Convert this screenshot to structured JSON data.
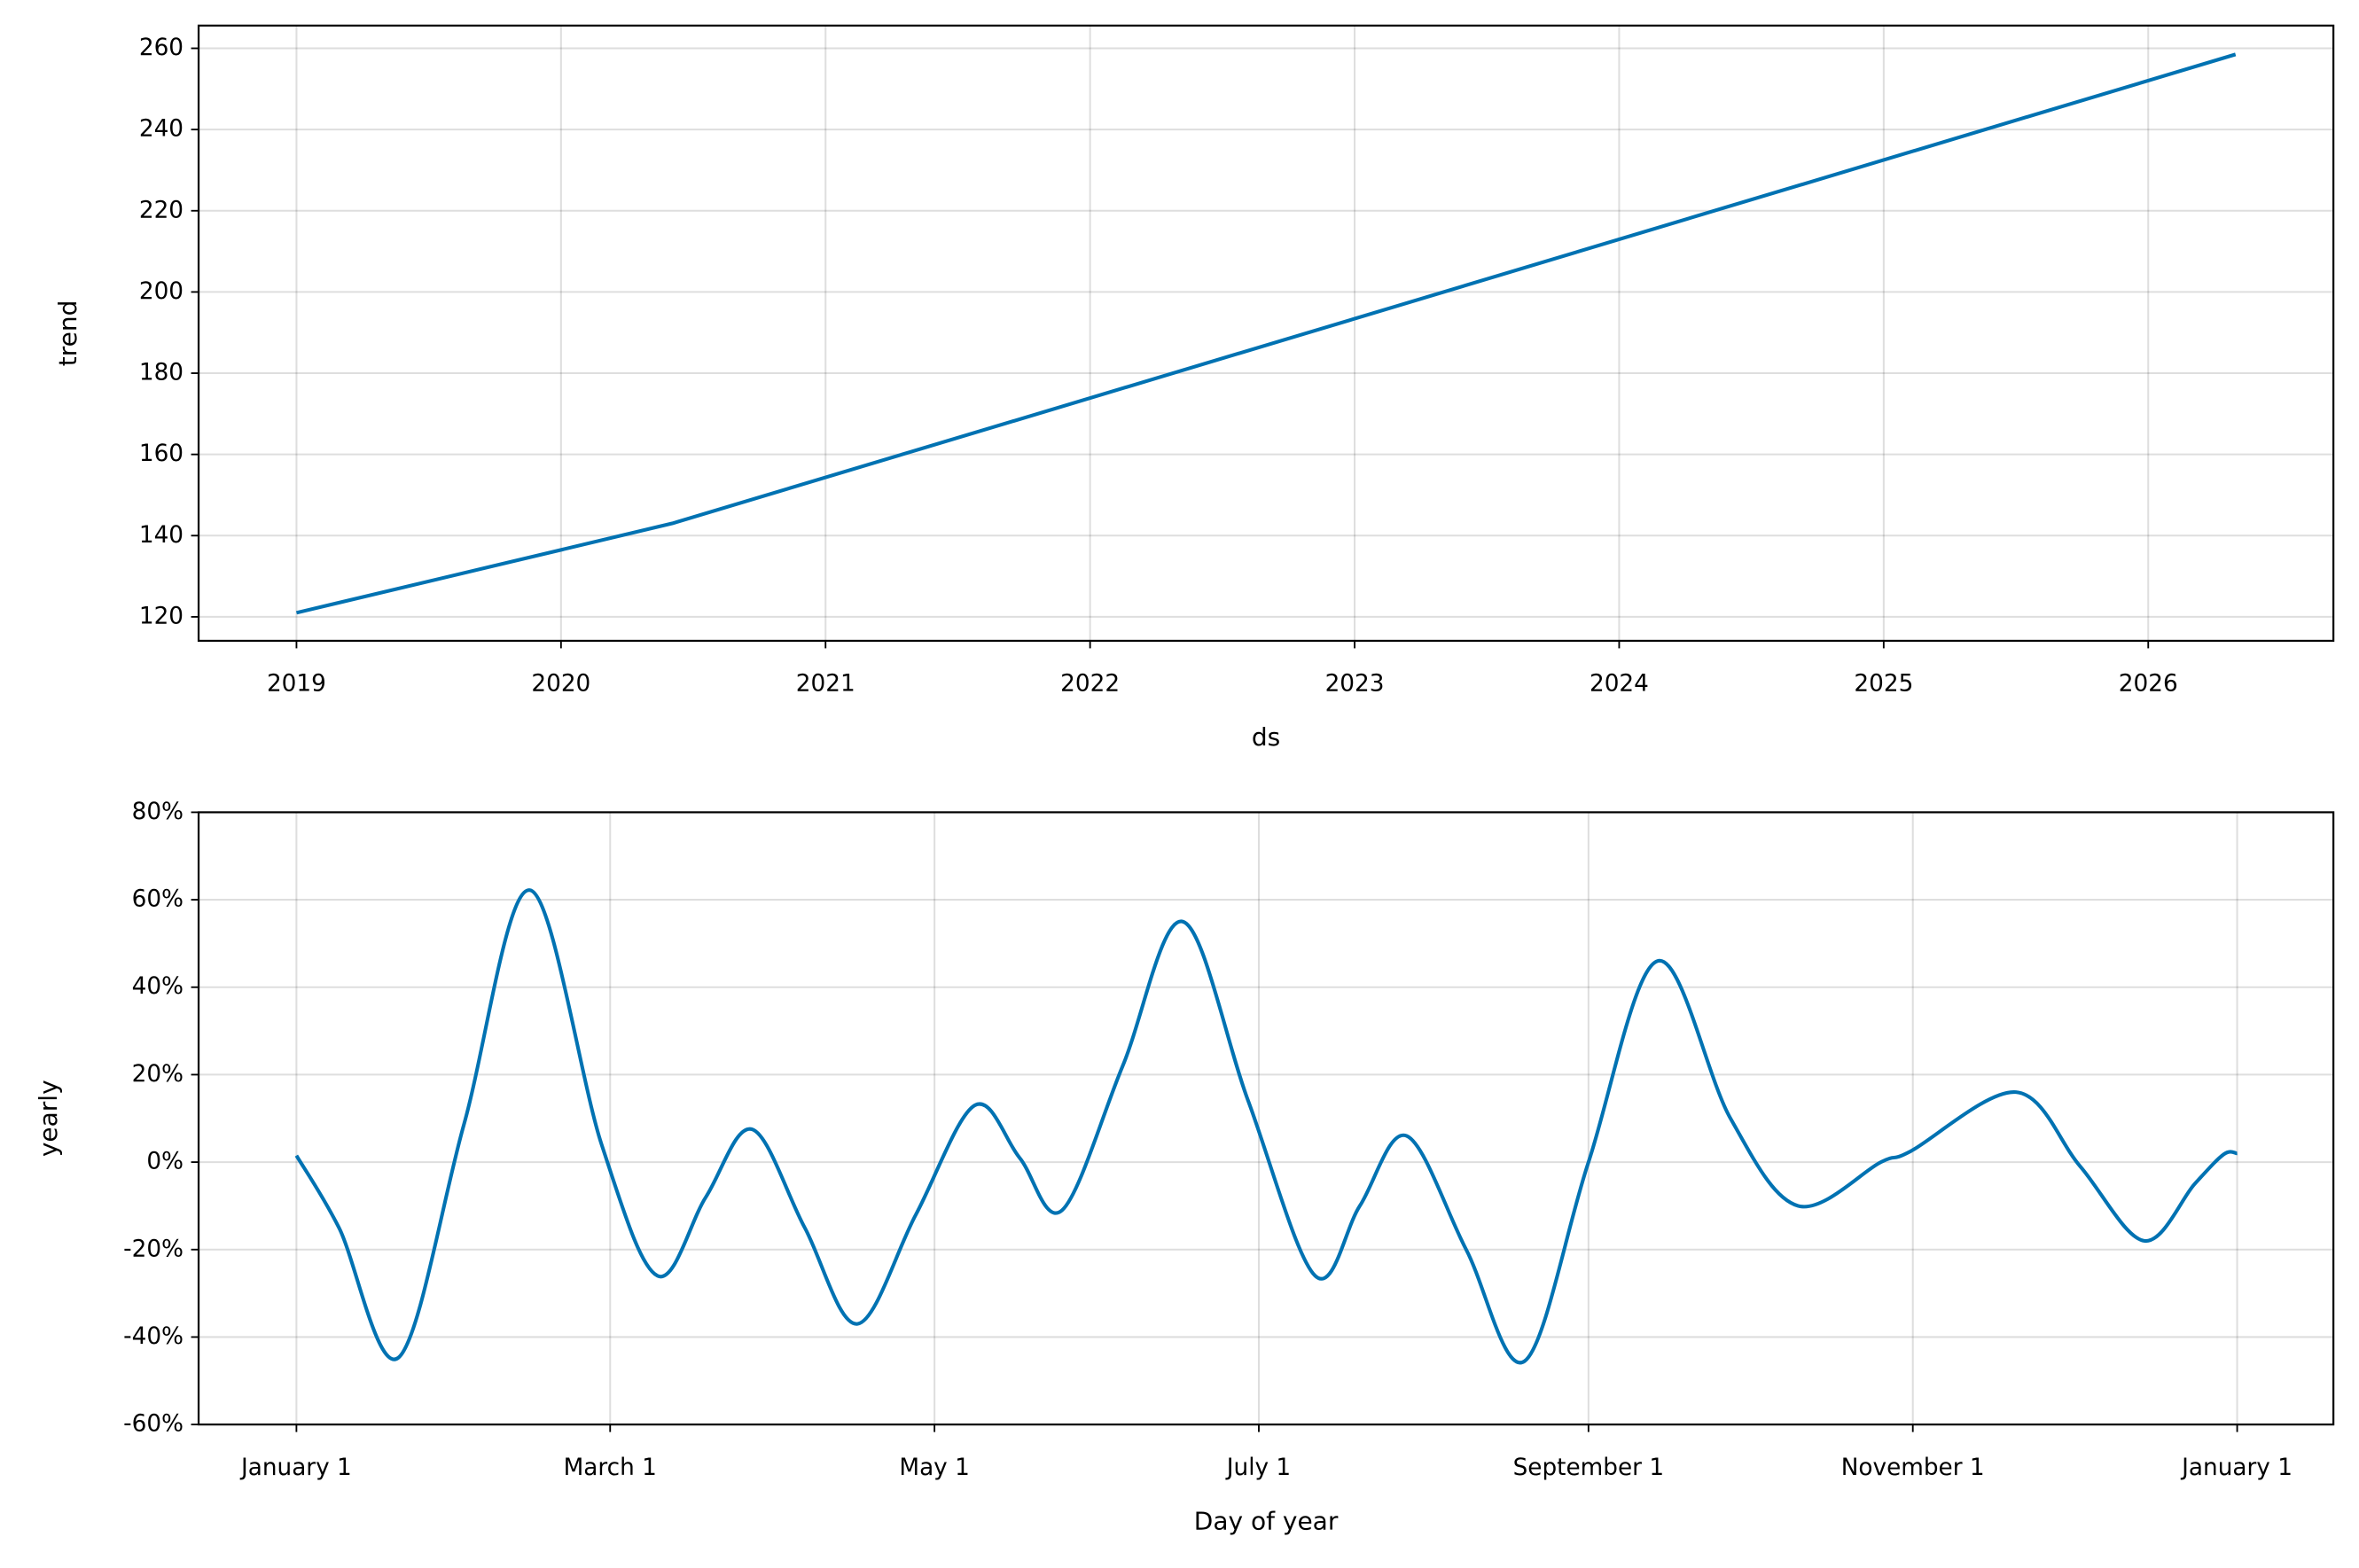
{
  "chart_data": [
    {
      "type": "line",
      "xlabel": "ds",
      "ylabel": "trend",
      "color": "#0072b2",
      "grid": true,
      "x": [
        2019,
        2020.42,
        2026.33
      ],
      "values": [
        121,
        143,
        258.5
      ],
      "xlim": [
        2018.63,
        2026.7
      ],
      "xticks": [
        2019,
        2020,
        2021,
        2022,
        2023,
        2024,
        2025,
        2026
      ],
      "ylim": [
        114.1,
        265.6
      ],
      "yticks": [
        120,
        140,
        160,
        180,
        200,
        220,
        240,
        260
      ]
    },
    {
      "type": "line",
      "xlabel": "Day of year",
      "ylabel": "yearly",
      "color": "#0072b2",
      "grid": true,
      "x": [
        0,
        8,
        19.2,
        31.5,
        43.9,
        57.4,
        67.9,
        77,
        85.7,
        95.6,
        105.5,
        116.5,
        127.6,
        136,
        144,
        155.4,
        166.7,
        179,
        191.6,
        200,
        208.8,
        220,
        231,
        243,
        256,
        269.7,
        282.4,
        298,
        303.6,
        323.4,
        335.5,
        347.5,
        357,
        362.5,
        365
      ],
      "values": [
        1.5,
        -15,
        -44.7,
        8.6,
        62.2,
        4,
        -26,
        -8,
        7.5,
        -15,
        -37,
        -12,
        13,
        1,
        -11,
        22,
        55,
        14,
        -26,
        -10,
        6,
        -20,
        -45.5,
        0,
        46,
        10,
        -10,
        0,
        2.5,
        16,
        -1,
        -18,
        -5,
        1.8,
        2
      ],
      "xlim": [
        -18.4,
        383.1
      ],
      "xticks": [
        {
          "value": 0,
          "label": "January 1"
        },
        {
          "value": 59,
          "label": "March 1"
        },
        {
          "value": 120,
          "label": "May 1"
        },
        {
          "value": 181,
          "label": "July 1"
        },
        {
          "value": 243,
          "label": "September 1"
        },
        {
          "value": 304,
          "label": "November 1"
        },
        {
          "value": 365,
          "label": "January 1"
        }
      ],
      "ylim": [
        -60,
        80
      ],
      "yticks": [
        {
          "value": -60,
          "label": "-60%"
        },
        {
          "value": -40,
          "label": "-40%"
        },
        {
          "value": -20,
          "label": "-20%"
        },
        {
          "value": 0,
          "label": "0%"
        },
        {
          "value": 20,
          "label": "20%"
        },
        {
          "value": 40,
          "label": "40%"
        },
        {
          "value": 60,
          "label": "60%"
        },
        {
          "value": 80,
          "label": "80%"
        }
      ]
    }
  ]
}
